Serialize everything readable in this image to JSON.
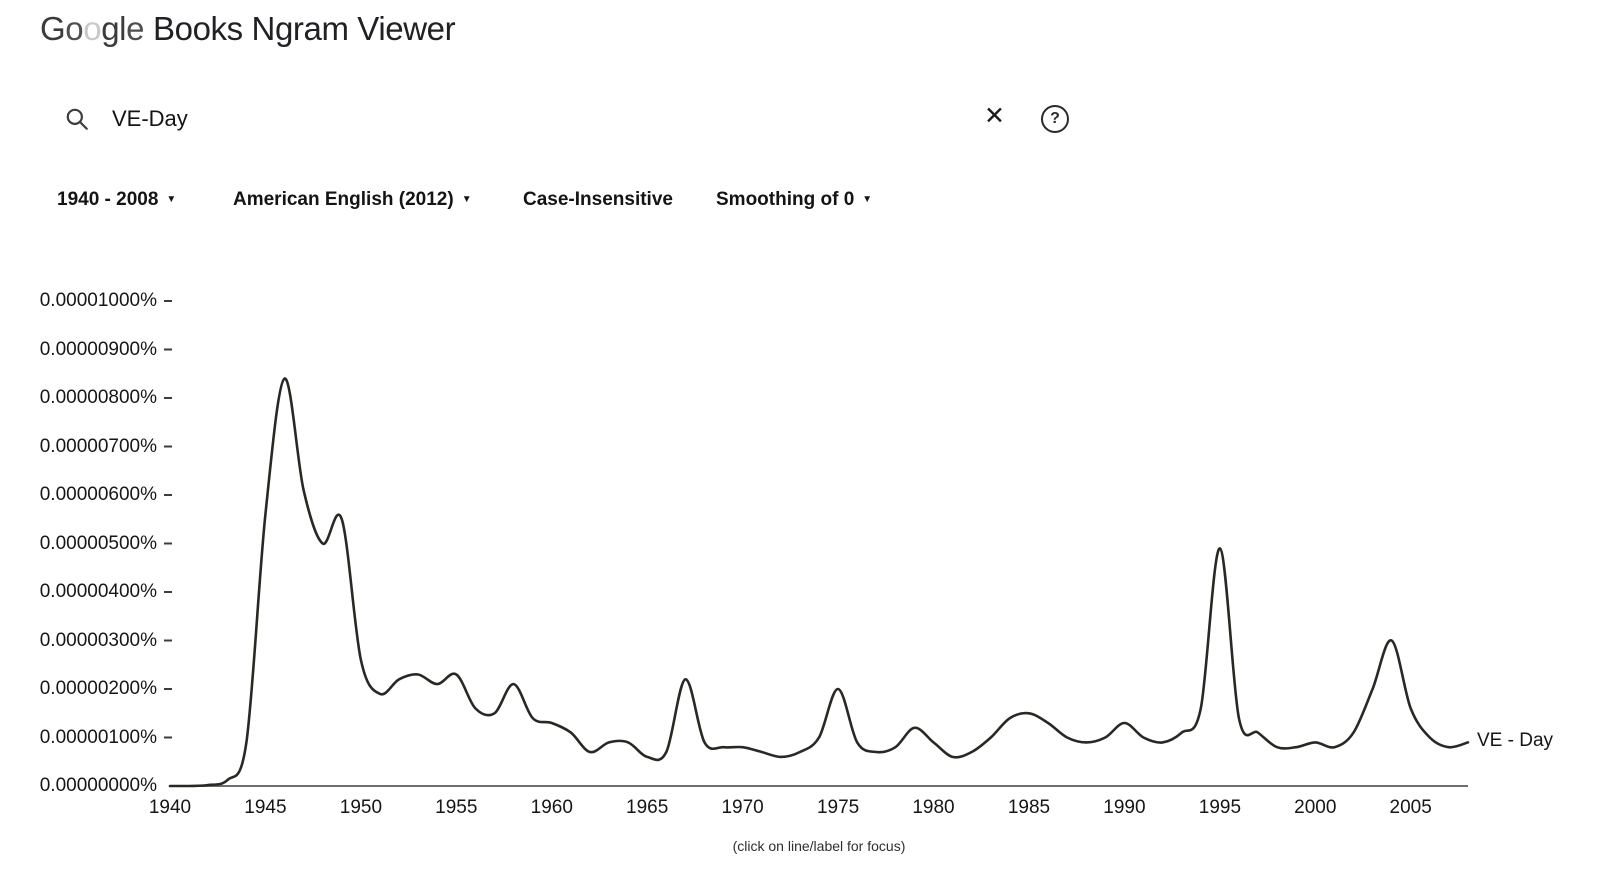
{
  "header": {
    "brand": "Google",
    "brand_letter_colors": [
      "#3b3b3b",
      "#4f4f4f",
      "#c9c9c9",
      "#3b3b3b",
      "#3b3b3b",
      "#4f4f4f"
    ],
    "title": "Books Ngram Viewer"
  },
  "search": {
    "query": "VE-Day",
    "placeholder": ""
  },
  "icons": {
    "caret": "▼",
    "clear": "✕",
    "help": "?"
  },
  "filters": {
    "year_range": "1940 - 2008",
    "corpus": "American English (2012)",
    "case_sensitivity": "Case-Insensitive",
    "smoothing": "Smoothing of 0"
  },
  "footer": {
    "hint": "(click on line/label for focus)"
  },
  "chart_data": {
    "type": "line",
    "title": "",
    "xlabel": "",
    "ylabel": "",
    "grid": false,
    "legend_position": "right-of-line-end",
    "xlim": [
      1940,
      2008
    ],
    "ylim_percent": [
      0,
      1e-05
    ],
    "y_tick_step_percent": 1e-06,
    "x_ticks": [
      1940,
      1945,
      1950,
      1955,
      1960,
      1965,
      1970,
      1975,
      1980,
      1985,
      1990,
      1995,
      2000,
      2005
    ],
    "y_tick_labels": [
      "0.00001000%",
      "0.00000900%",
      "0.00000800%",
      "0.00000700%",
      "0.00000600%",
      "0.00000500%",
      "0.00000400%",
      "0.00000300%",
      "0.00000200%",
      "0.00000100%",
      "0.00000000%"
    ],
    "series": [
      {
        "name": "VE - Day",
        "color": "#2b2824",
        "x": [
          1940,
          1941,
          1942,
          1943,
          1944,
          1945,
          1946,
          1947,
          1948,
          1949,
          1950,
          1951,
          1952,
          1953,
          1954,
          1955,
          1956,
          1957,
          1958,
          1959,
          1960,
          1961,
          1962,
          1963,
          1964,
          1965,
          1966,
          1967,
          1968,
          1969,
          1970,
          1971,
          1972,
          1973,
          1974,
          1975,
          1976,
          1977,
          1978,
          1979,
          1980,
          1981,
          1982,
          1983,
          1984,
          1985,
          1986,
          1987,
          1988,
          1989,
          1990,
          1991,
          1992,
          1993,
          1994,
          1995,
          1996,
          1997,
          1998,
          1999,
          2000,
          2001,
          2002,
          2003,
          2004,
          2005,
          2006,
          2007,
          2008
        ],
        "values_percent": [
          0,
          0,
          2e-08,
          1.2e-07,
          9e-07,
          5.6e-06,
          8.4e-06,
          6.1e-06,
          5e-06,
          5.5e-06,
          2.6e-06,
          1.9e-06,
          2.2e-06,
          2.3e-06,
          2.1e-06,
          2.3e-06,
          1.6e-06,
          1.5e-06,
          2.1e-06,
          1.4e-06,
          1.3e-06,
          1.1e-06,
          7e-07,
          9e-07,
          9e-07,
          6e-07,
          7e-07,
          2.2e-06,
          9e-07,
          8e-07,
          8e-07,
          7e-07,
          6e-07,
          7e-07,
          1e-06,
          2e-06,
          9e-07,
          7e-07,
          8e-07,
          1.2e-06,
          9e-07,
          6e-07,
          7e-07,
          1e-06,
          1.4e-06,
          1.5e-06,
          1.3e-06,
          1e-06,
          9e-07,
          1e-06,
          1.3e-06,
          1e-06,
          9e-07,
          1.1e-06,
          1.6e-06,
          4.9e-06,
          1.4e-06,
          1.1e-06,
          8e-07,
          8e-07,
          9e-07,
          8e-07,
          1.1e-06,
          2e-06,
          3e-06,
          1.6e-06,
          1e-06,
          8e-07,
          9e-07
        ]
      }
    ]
  }
}
